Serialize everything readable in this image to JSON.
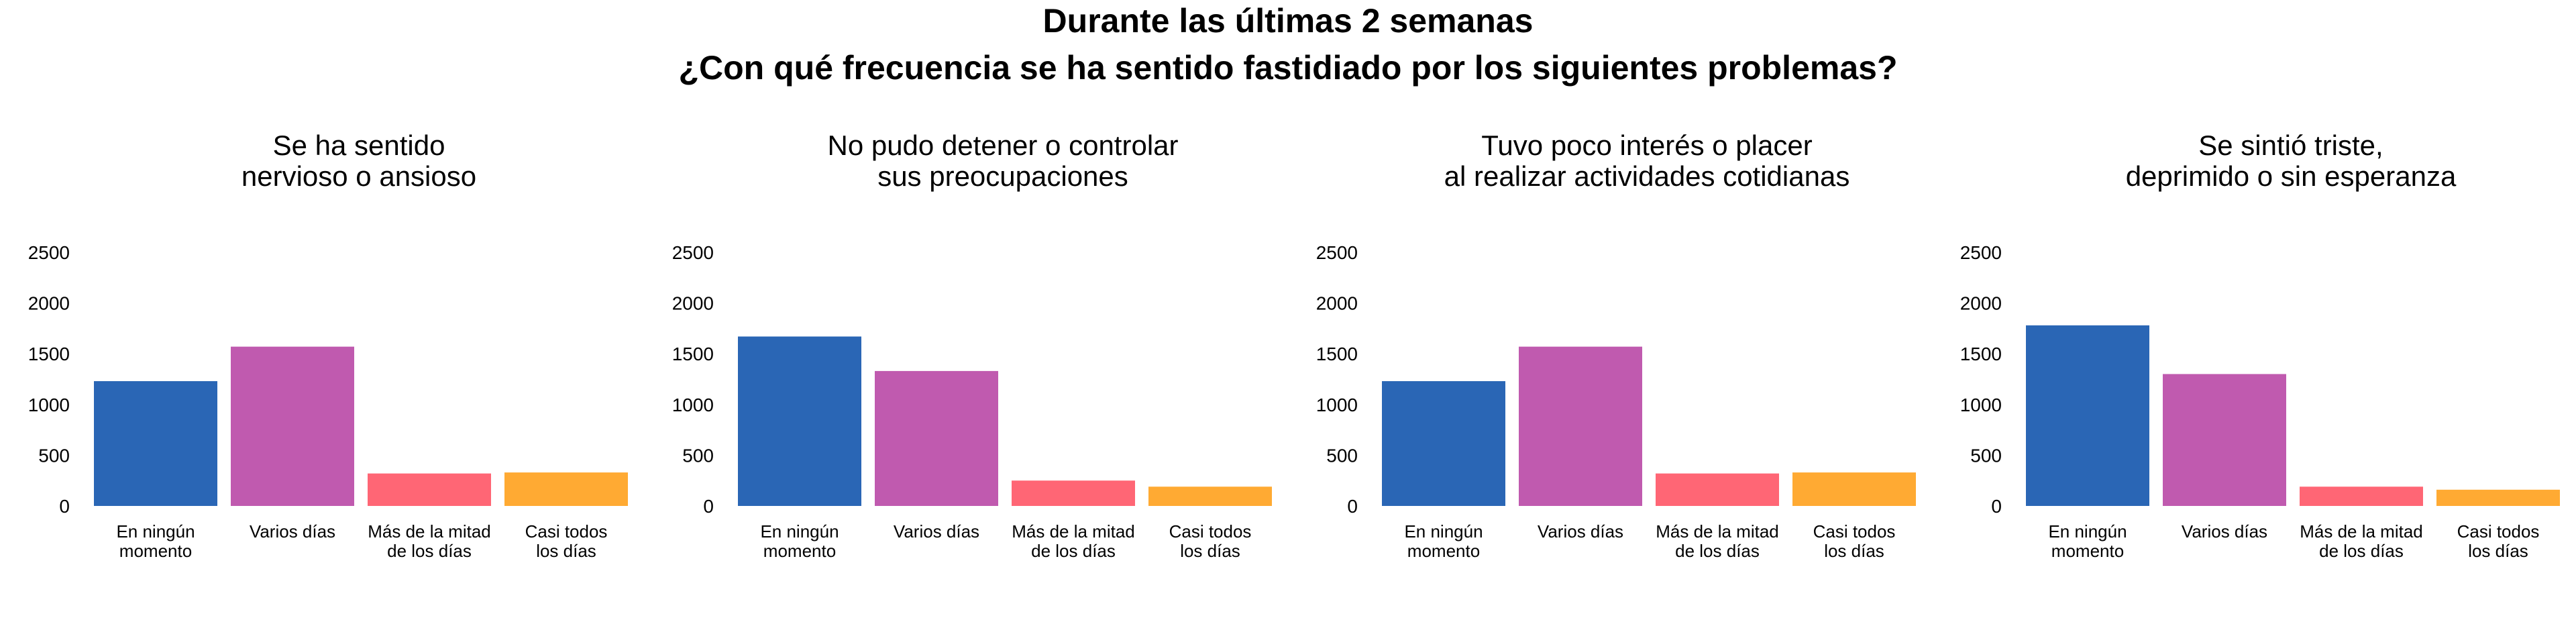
{
  "title": "Durante las últimas 2 semanas",
  "subtitle": "¿Con qué frecuencia se ha sentido fastidiado por los siguientes problemas?",
  "colors": [
    "#2a66b5",
    "#c05aaf",
    "#ff6675",
    "#ffaa33"
  ],
  "chart_data": [
    {
      "type": "bar",
      "title": [
        "Se ha sentido",
        "nervioso o ansioso"
      ],
      "categories": [
        [
          "En ningún",
          "momento"
        ],
        [
          "Varios días"
        ],
        [
          "Más de la mitad",
          "de los días"
        ],
        [
          "Casi todos",
          "los días"
        ]
      ],
      "values": [
        1230,
        1570,
        320,
        330
      ],
      "yticks": [
        0,
        500,
        1000,
        1500,
        2000,
        2500
      ],
      "ylim": [
        0,
        2500
      ],
      "grid": false
    },
    {
      "type": "bar",
      "title": [
        "No pudo detener o controlar",
        "sus preocupaciones"
      ],
      "categories": [
        [
          "En ningún",
          "momento"
        ],
        [
          "Varios días"
        ],
        [
          "Más de la mitad",
          "de los días"
        ],
        [
          "Casi todos",
          "los días"
        ]
      ],
      "values": [
        1670,
        1330,
        250,
        190
      ],
      "yticks": [
        0,
        500,
        1000,
        1500,
        2000,
        2500
      ],
      "ylim": [
        0,
        2500
      ],
      "grid": false
    },
    {
      "type": "bar",
      "title": [
        "Tuvo poco interés o placer",
        "al realizar actividades cotidianas"
      ],
      "categories": [
        [
          "En ningún",
          "momento"
        ],
        [
          "Varios días"
        ],
        [
          "Más de la mitad",
          "de los días"
        ],
        [
          "Casi todos",
          "los días"
        ]
      ],
      "values": [
        1230,
        1570,
        320,
        330
      ],
      "yticks": [
        0,
        500,
        1000,
        1500,
        2000,
        2500
      ],
      "ylim": [
        0,
        2500
      ],
      "grid": false
    },
    {
      "type": "bar",
      "title": [
        "Se sintió triste,",
        "deprimido o sin esperanza"
      ],
      "categories": [
        [
          "En ningún",
          "momento"
        ],
        [
          "Varios días"
        ],
        [
          "Más de la mitad",
          "de los días"
        ],
        [
          "Casi todos",
          "los días"
        ]
      ],
      "values": [
        1780,
        1300,
        190,
        160
      ],
      "yticks": [
        0,
        500,
        1000,
        1500,
        2000,
        2500
      ],
      "ylim": [
        0,
        2500
      ],
      "grid": false
    }
  ]
}
